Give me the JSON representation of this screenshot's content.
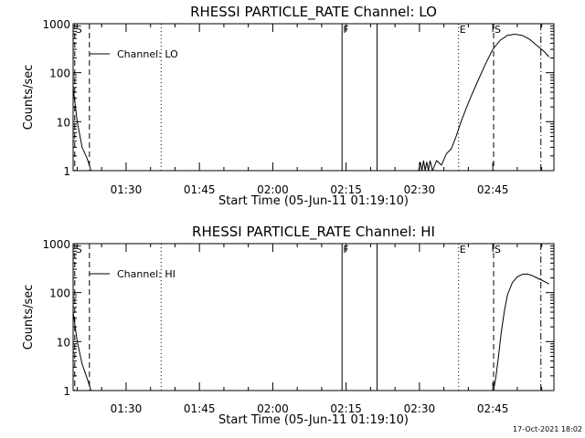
{
  "chart_data": [
    {
      "type": "line",
      "title": "RHESSI PARTICLE_RATE Channel: LO",
      "xlabel": "Start Time (05-Jun-11 01:19:10)",
      "ylabel": "Counts/sec",
      "y_scale": "log",
      "ylim": [
        1,
        1000
      ],
      "xlim": [
        "01:19:10",
        "02:57:30"
      ],
      "x_ticks": [
        "01:30",
        "01:45",
        "02:00",
        "02:15",
        "02:30",
        "02:45"
      ],
      "y_ticks": [
        "1",
        "10",
        "100",
        "1000"
      ],
      "legend": {
        "label": "Channel: LO",
        "position": "top-left"
      },
      "series": [
        {
          "name": "Channel: LO",
          "segments": [
            {
              "x": [
                "01:19:10",
                "01:20:00",
                "01:21:00",
                "01:22:00",
                "01:22:50"
              ],
              "y": [
                50,
                10,
                3,
                1.8,
                1
              ]
            },
            {
              "x": [
                "02:29:50",
                "02:30:10",
                "02:30:30",
                "02:30:50",
                "02:31:10",
                "02:31:30",
                "02:31:50",
                "02:32:10",
                "02:32:40",
                "02:33:30",
                "02:34:30",
                "02:35:30",
                "02:36:30",
                "02:37:30",
                "02:38:30",
                "02:39:30",
                "02:40:30",
                "02:42:00",
                "02:43:30",
                "02:45:00",
                "02:46:30",
                "02:48:00",
                "02:49:30",
                "02:51:00",
                "02:52:30",
                "02:54:00",
                "02:55:30",
                "02:56:30"
              ],
              "y": [
                1,
                1.5,
                1,
                1.6,
                1,
                1.5,
                1,
                1.6,
                1,
                1.6,
                1.3,
                2.2,
                2.8,
                5,
                10,
                18,
                32,
                70,
                150,
                300,
                460,
                580,
                610,
                580,
                480,
                360,
                270,
                210
              ]
            }
          ]
        }
      ],
      "annotations": [
        {
          "label": "S",
          "x": "01:19:30",
          "style": "dashed"
        },
        {
          "label": "",
          "x": "01:22:30",
          "style": "dashed"
        },
        {
          "label": "",
          "x": "01:37:10",
          "style": "dotted"
        },
        {
          "label": "F",
          "x": "02:14:10",
          "style": "solid"
        },
        {
          "label": "",
          "x": "02:21:20",
          "style": "solid"
        },
        {
          "label": "E",
          "x": "02:38:00",
          "style": "dotted"
        },
        {
          "label": "S",
          "x": "02:45:10",
          "style": "dashed"
        },
        {
          "label": "",
          "x": "02:54:50",
          "style": "dashdot"
        }
      ]
    },
    {
      "type": "line",
      "title": "RHESSI PARTICLE_RATE Channel: HI",
      "xlabel": "Start Time (05-Jun-11 01:19:10)",
      "ylabel": "Counts/sec",
      "y_scale": "log",
      "ylim": [
        1,
        1000
      ],
      "xlim": [
        "01:19:10",
        "02:57:30"
      ],
      "x_ticks": [
        "01:30",
        "01:45",
        "02:00",
        "02:15",
        "02:30",
        "02:45"
      ],
      "y_ticks": [
        "1",
        "10",
        "100",
        "1000"
      ],
      "legend": {
        "label": "Channel: HI",
        "position": "top-left"
      },
      "series": [
        {
          "name": "Channel: HI",
          "segments": [
            {
              "x": [
                "01:19:10",
                "01:20:00",
                "01:21:00",
                "01:22:00",
                "01:22:50"
              ],
              "y": [
                40,
                10,
                3.5,
                1.8,
                1
              ]
            },
            {
              "x": [
                "02:45:10",
                "02:45:40",
                "02:46:10",
                "02:46:40",
                "02:47:20",
                "02:48:00",
                "02:49:00",
                "02:50:00",
                "02:51:00",
                "02:52:00",
                "02:53:00",
                "02:54:00",
                "02:55:00",
                "02:56:00",
                "02:56:30"
              ],
              "y": [
                1,
                2,
                5,
                14,
                40,
                90,
                160,
                210,
                235,
                240,
                225,
                200,
                180,
                160,
                150
              ]
            }
          ]
        }
      ],
      "annotations": [
        {
          "label": "S",
          "x": "01:19:30",
          "style": "dashed"
        },
        {
          "label": "",
          "x": "01:22:30",
          "style": "dashed"
        },
        {
          "label": "",
          "x": "01:37:10",
          "style": "dotted"
        },
        {
          "label": "F",
          "x": "02:14:10",
          "style": "solid"
        },
        {
          "label": "",
          "x": "02:21:20",
          "style": "solid"
        },
        {
          "label": "E",
          "x": "02:38:00",
          "style": "dotted"
        },
        {
          "label": "S",
          "x": "02:45:10",
          "style": "dashed"
        },
        {
          "label": "",
          "x": "02:54:50",
          "style": "dashdot"
        }
      ]
    }
  ],
  "footer": {
    "timestamp": "17-Oct-2021 18:02"
  }
}
